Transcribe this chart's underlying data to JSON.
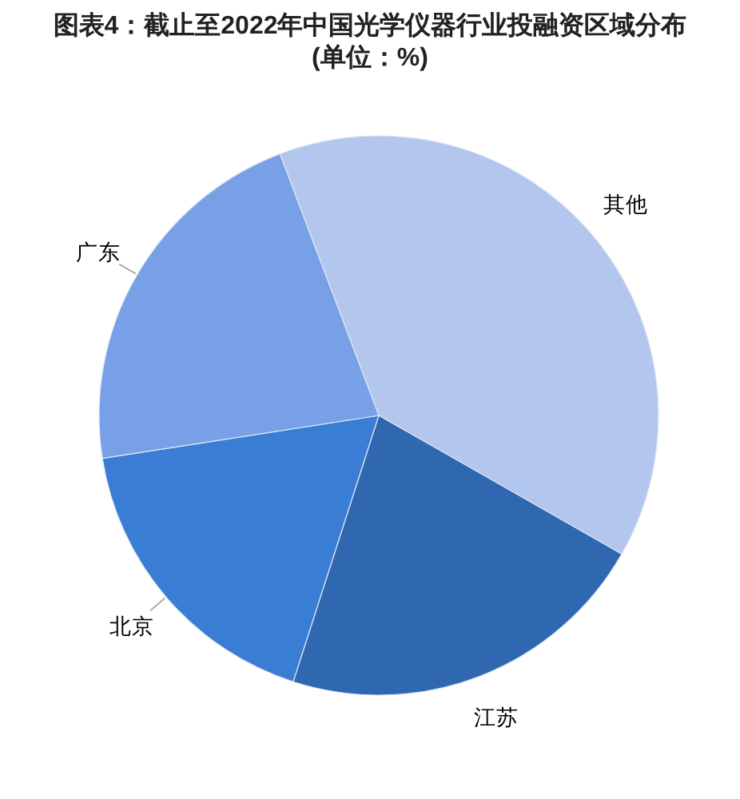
{
  "chart_data": {
    "type": "pie",
    "title": "图表4：截止至2022年中国光学仪器行业投融资区域分布(单位：%)",
    "categories": [
      "其他",
      "江苏",
      "北京",
      "广东"
    ],
    "values": [
      39,
      21.7,
      17.6,
      21.7
    ],
    "colors": [
      "#b3c6ee",
      "#2f68b1",
      "#3a7dd4",
      "#77a0e6"
    ]
  }
}
